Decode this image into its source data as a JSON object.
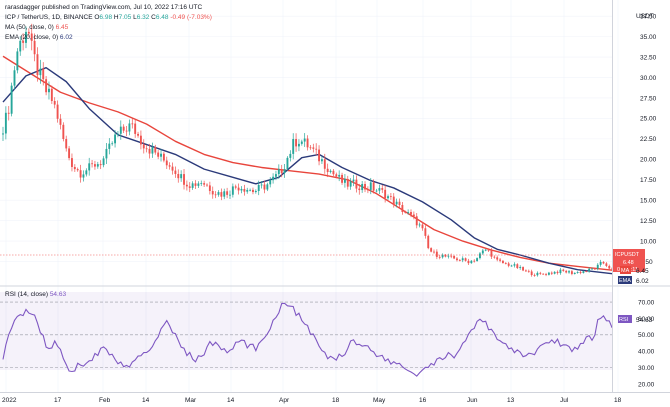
{
  "header": {
    "author": "rarasdagger",
    "published_line": "published on TradingView.com, Jul 10, 2022 17:16 UTC",
    "symbol_line": "ICP / TetherUS, 1D, BINANCE",
    "o_label": "O",
    "o_val": "6.98",
    "h_label": "H",
    "h_val": "7.05",
    "l_label": "L",
    "l_val": "6.32",
    "c_label": "C",
    "c_val": "6.48",
    "change": "-0.49 (-7.03%)",
    "ma_line": "MA (50, close, 0)",
    "ma_val": "6.45",
    "ema_line": "EMA (20, close, 0)",
    "ema_val": "6.02",
    "rsi_line": "RSI (14, close)",
    "rsi_val": "54.63"
  },
  "currency": "USDT",
  "tags": {
    "price_symbol": "ICPUSDT",
    "price_val": "6.48",
    "countdown": "06:43:11",
    "ma_label": "MA",
    "ma_val": "6.45",
    "ema_label": "EMA",
    "ema_val": "6.02",
    "rsi_label": "RSI",
    "rsi_val": "54.63"
  },
  "chart_data": [
    {
      "type": "candlestick",
      "title": "ICP / TetherUS, 1D, BINANCE",
      "y_ticks": [
        "37.50",
        "35.00",
        "32.50",
        "30.00",
        "27.50",
        "25.00",
        "22.50",
        "20.00",
        "17.50",
        "15.00",
        "12.50",
        "10.00",
        "7.50"
      ],
      "ylim": [
        5.0,
        38.5
      ],
      "x_ticks": [
        "2022",
        "17",
        "Feb",
        "14",
        "Mar",
        "14",
        "Apr",
        "18",
        "May",
        "16",
        "Jun",
        "13",
        "Jul",
        "18"
      ],
      "series": [
        {
          "name": "ICPUSDT",
          "kind": "candles",
          "close": [
            24.0,
            25.6,
            29.8,
            33.4,
            34.8,
            36.4,
            33.2,
            31.2,
            29.6,
            28.2,
            27.4,
            26.0,
            23.5,
            21.2,
            19.8,
            18.9,
            18.4,
            18.7,
            18.9,
            19.4,
            19.6,
            20.1,
            21.3,
            22.5,
            23.1,
            23.6,
            24.1,
            23.8,
            22.8,
            22.0,
            21.4,
            21.0,
            20.5,
            20.0,
            19.6,
            19.1,
            18.4,
            17.7,
            17.2,
            16.9,
            17.1,
            17.3,
            16.9,
            16.4,
            16.0,
            15.8,
            15.9,
            16.2,
            16.6,
            16.7,
            16.5,
            16.3,
            16.1,
            16.4,
            16.7,
            17.0,
            17.6,
            18.2,
            19.1,
            20.4,
            21.8,
            22.5,
            22.1,
            21.7,
            21.1,
            20.4,
            19.8,
            19.2,
            18.4,
            17.9,
            17.3,
            16.9,
            17.0,
            16.9,
            16.8,
            16.5,
            16.7,
            16.3,
            16.1,
            15.8,
            15.2,
            14.8,
            14.1,
            13.7,
            13.2,
            12.7,
            12.0,
            11.1,
            9.0,
            8.5,
            8.3,
            8.2,
            8.0,
            7.9,
            7.8,
            7.7,
            7.5,
            7.6,
            7.9,
            8.6,
            9.0,
            8.4,
            7.6,
            7.4,
            7.2,
            7.1,
            6.9,
            6.6,
            6.3,
            6.1,
            6.0,
            5.9,
            6.0,
            6.1,
            6.2,
            6.3,
            6.3,
            6.2,
            6.1,
            6.2,
            6.3,
            6.4,
            6.6,
            6.9,
            7.4,
            7.0,
            6.48
          ]
        },
        {
          "name": "MA (50, close, 0)",
          "kind": "line",
          "color": "#e8453c",
          "points": [
            [
              0,
              32.6
            ],
            [
              10,
              30.4
            ],
            [
              20,
              28.2
            ],
            [
              30,
              26.9
            ],
            [
              40,
              25.8
            ],
            [
              50,
              24.3
            ],
            [
              60,
              22.2
            ],
            [
              70,
              20.6
            ],
            [
              80,
              19.6
            ],
            [
              90,
              19.0
            ],
            [
              100,
              18.6
            ],
            [
              110,
              18.2
            ],
            [
              120,
              17.5
            ],
            [
              130,
              15.8
            ],
            [
              140,
              13.6
            ],
            [
              150,
              11.4
            ],
            [
              160,
              10.0
            ],
            [
              170,
              8.9
            ],
            [
              180,
              8.0
            ],
            [
              190,
              7.3
            ],
            [
              200,
              6.9
            ],
            [
              212,
              6.45
            ]
          ]
        },
        {
          "name": "EMA (20, close, 0)",
          "kind": "line",
          "color": "#2b3a7a",
          "points": [
            [
              0,
              27.0
            ],
            [
              8,
              30.2
            ],
            [
              15,
              31.2
            ],
            [
              22,
              29.5
            ],
            [
              30,
              26.2
            ],
            [
              40,
              23.0
            ],
            [
              50,
              21.8
            ],
            [
              60,
              20.6
            ],
            [
              70,
              18.8
            ],
            [
              80,
              17.8
            ],
            [
              88,
              17.0
            ],
            [
              96,
              17.8
            ],
            [
              104,
              20.2
            ],
            [
              110,
              20.6
            ],
            [
              118,
              19.0
            ],
            [
              128,
              17.4
            ],
            [
              136,
              16.5
            ],
            [
              146,
              14.8
            ],
            [
              156,
              12.6
            ],
            [
              164,
              10.4
            ],
            [
              172,
              9.0
            ],
            [
              180,
              8.3
            ],
            [
              190,
              7.3
            ],
            [
              200,
              6.5
            ],
            [
              212,
              6.02
            ]
          ]
        },
        {
          "name": "RSI (14, close)",
          "kind": "oscillator",
          "color": "#7e57c2",
          "levels": [
            70,
            50,
            30
          ],
          "ylim": [
            20,
            78
          ],
          "values": [
            37,
            47,
            55,
            62,
            60,
            66,
            64,
            60,
            52,
            45,
            40,
            46,
            43,
            35,
            30,
            28,
            31,
            32,
            34,
            36,
            38,
            41,
            42,
            38,
            34,
            33,
            30,
            31,
            33,
            36,
            38,
            40,
            44,
            50,
            55,
            57,
            53,
            48,
            44,
            40,
            37,
            35,
            36,
            40,
            44,
            45,
            43,
            41,
            39,
            42,
            45,
            46,
            44,
            43,
            41,
            47,
            50,
            55,
            60,
            66,
            70,
            69,
            66,
            62,
            58,
            55,
            50,
            45,
            40,
            37,
            35,
            36,
            38,
            40,
            44,
            48,
            43,
            45,
            42,
            40,
            38,
            36,
            34,
            32,
            33,
            31,
            30,
            27,
            25,
            27,
            29,
            30,
            32,
            35,
            36,
            38,
            37,
            40,
            44,
            48,
            52,
            56,
            58,
            57,
            53,
            50,
            47,
            45,
            42,
            40,
            39,
            38,
            37,
            39,
            41,
            43,
            45,
            47,
            46,
            45,
            44,
            42,
            41,
            43,
            46,
            50,
            48,
            60,
            62,
            58,
            54.63
          ]
        }
      ]
    }
  ]
}
